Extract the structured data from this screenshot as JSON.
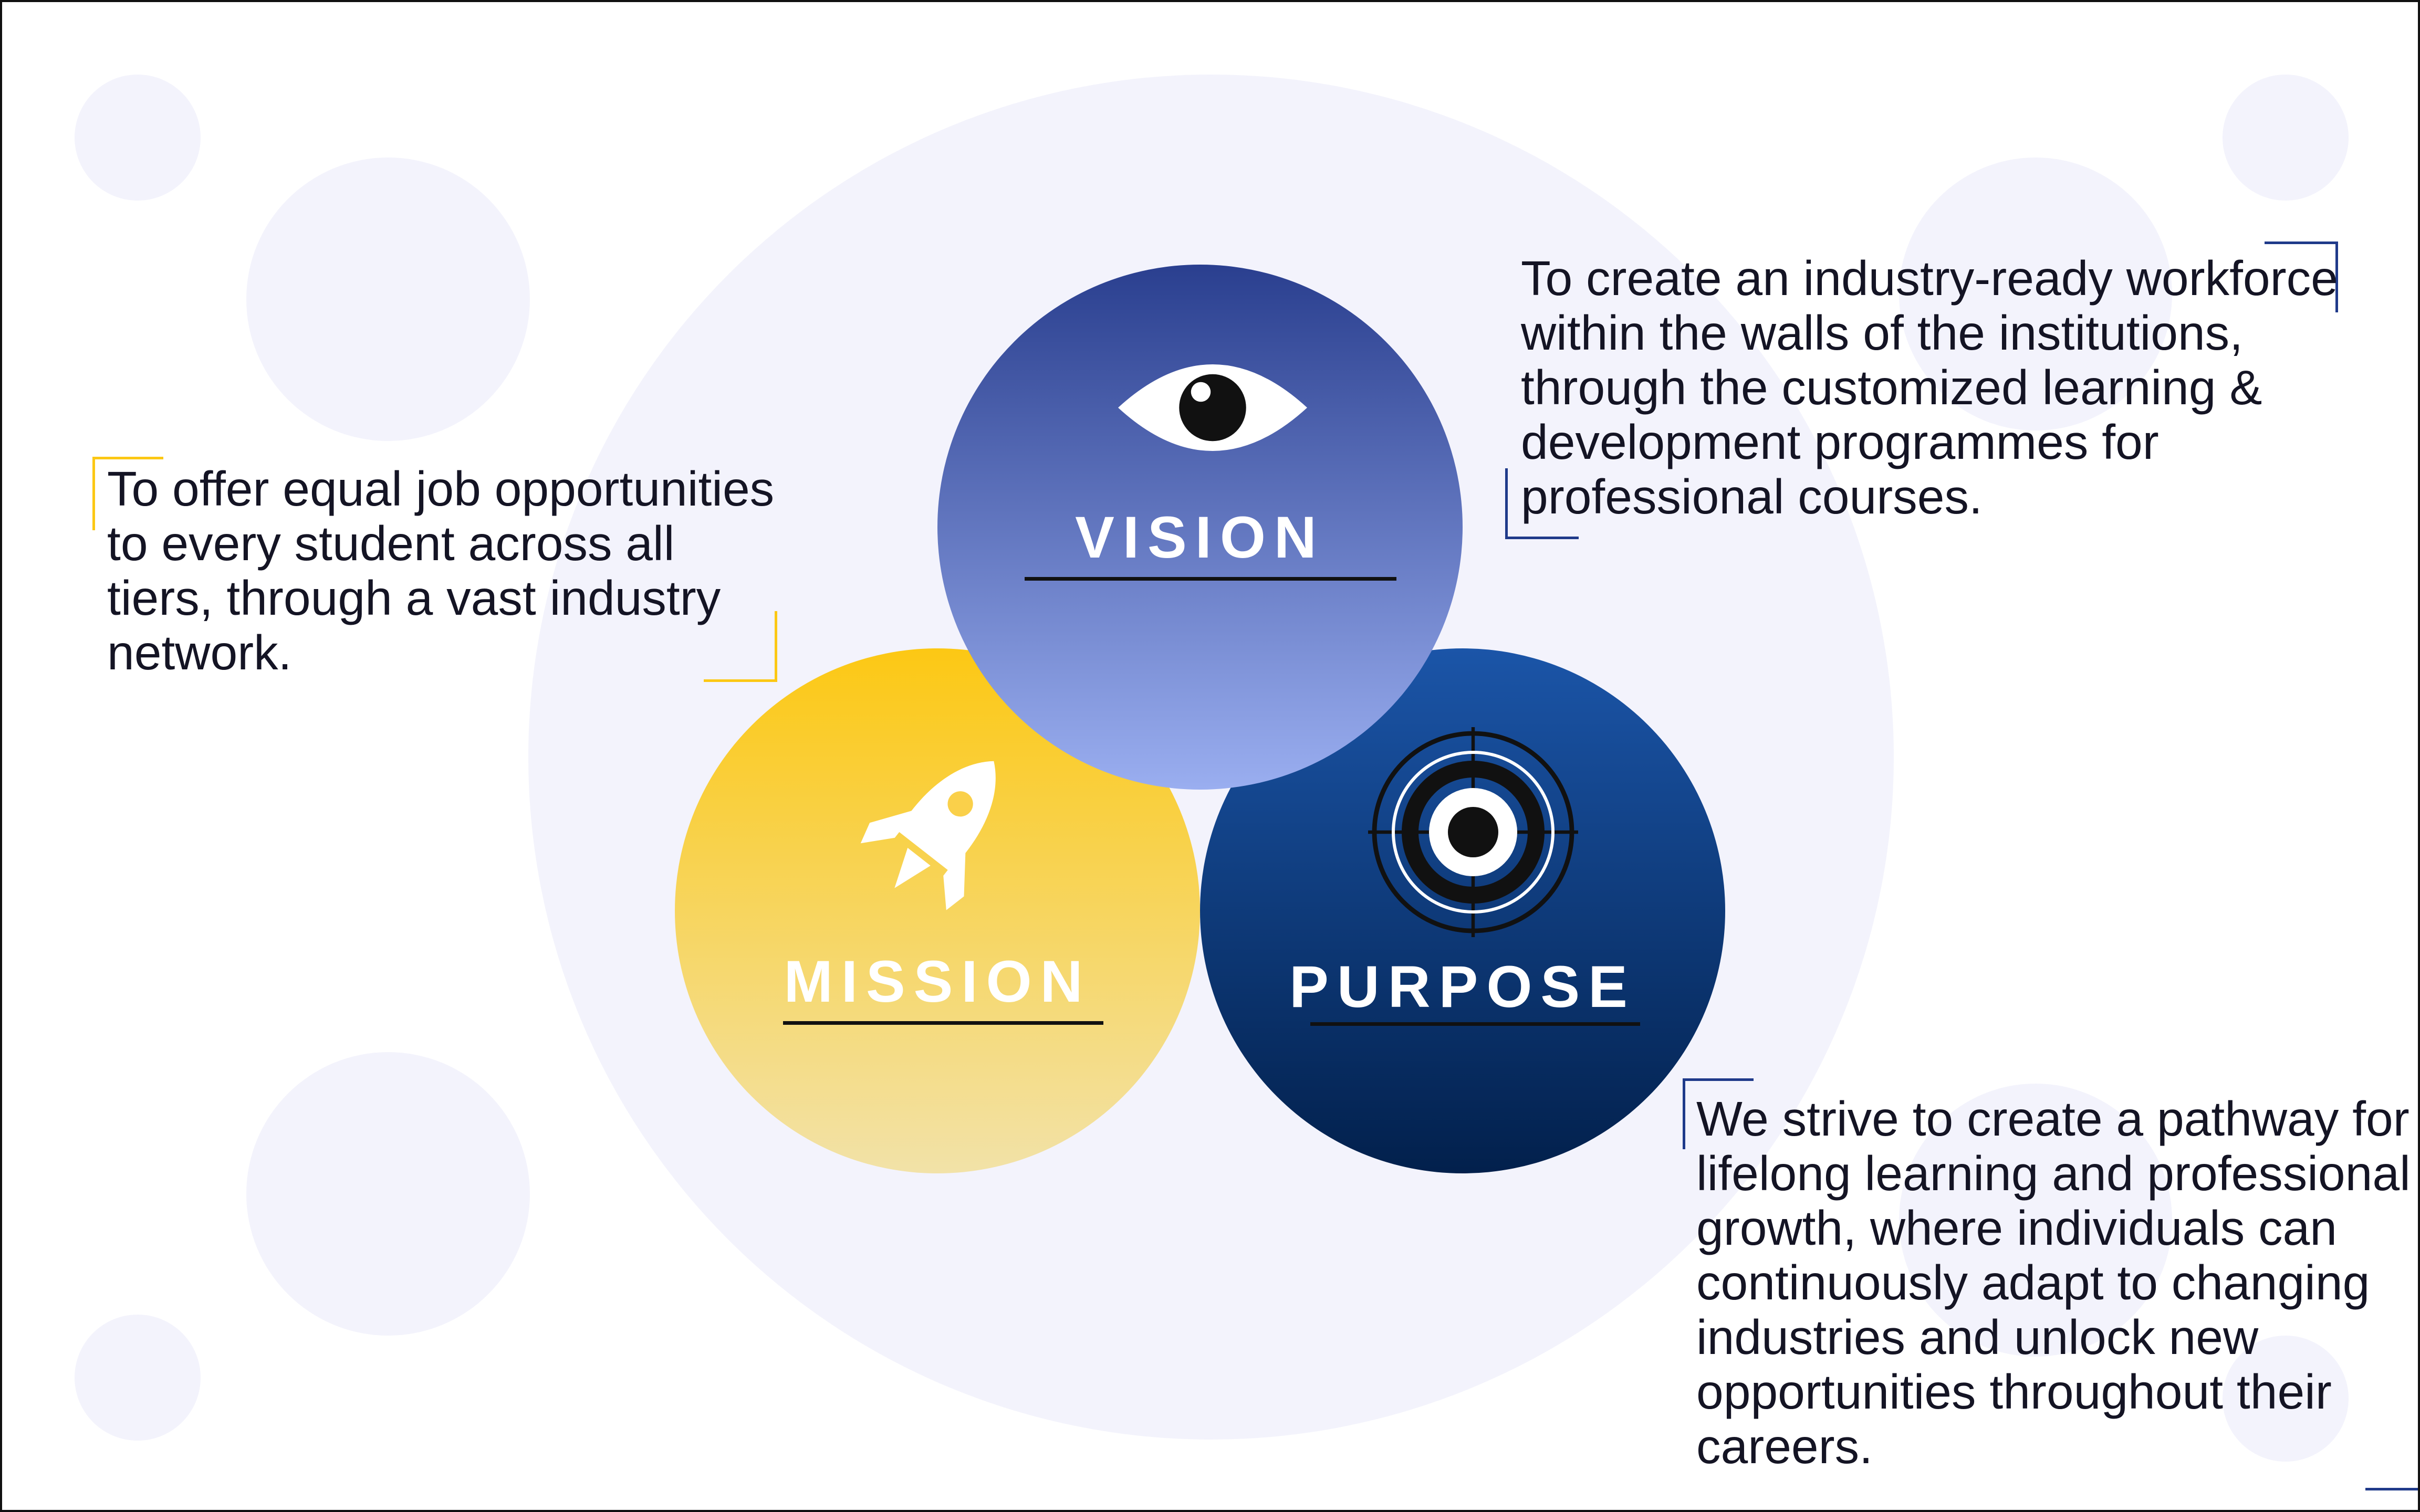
{
  "diagram": {
    "circles": [
      {
        "id": "vision",
        "label": "VISION",
        "icon": "eye-icon",
        "gradient": [
          "#2a3f8f",
          "#9aaef0"
        ]
      },
      {
        "id": "mission",
        "label": "MISSION",
        "icon": "rocket-icon",
        "gradient": [
          "#fcc814",
          "#f2e2a8"
        ]
      },
      {
        "id": "purpose",
        "label": "PURPOSE",
        "icon": "target-icon",
        "gradient": [
          "#1b55a8",
          "#02204c"
        ]
      }
    ]
  },
  "statements": {
    "mission": [
      "To offer equal job opportunities",
      "to every student across all",
      "tiers, through a vast industry",
      "network."
    ],
    "vision": [
      "To create an industry-ready workforce",
      "within the walls of the institutions,",
      "through the customized learning &",
      "development programmes for",
      "professional courses."
    ],
    "purpose": [
      "We strive to create a pathway for",
      "lifelong learning and professional",
      "growth, where individuals can",
      "continuously adapt to changing",
      "industries and unlock new",
      "opportunities throughout their",
      "careers."
    ]
  },
  "colors": {
    "background": "#ffffff",
    "decor": "#f3f3fc",
    "text": "#141424",
    "accent_yellow": "#fcc814",
    "accent_navy": "#1f3a8a"
  }
}
